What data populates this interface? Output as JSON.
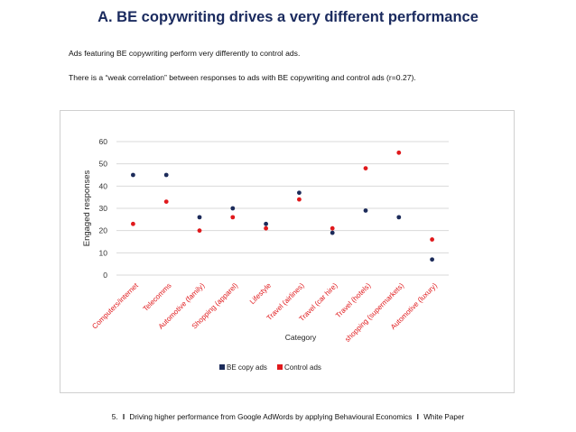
{
  "page": {
    "title": "A. BE copywriting drives a very different performance",
    "paragraph1": "Ads featuring BE copywriting perform very differently to control ads.",
    "paragraph2": "There is a “weak correlation” between responses to ads with BE copywriting and control ads (r=0.27).",
    "footer_number": "5.",
    "footer_separator": "I",
    "footer_text": "Driving higher performance from Google AdWords by applying Behavioural Economics",
    "footer_suffix": "White Paper"
  },
  "colors": {
    "title": "#1a2a5e",
    "be_copy": "#1c2b5a",
    "control": "#e0191c",
    "gridline": "#d9d9d9"
  },
  "chart_data": {
    "type": "scatter",
    "categories": [
      "Computers/internet",
      "Telecomms",
      "Automotive (family)",
      "Shopping (apparel)",
      "Lifestyle",
      "Travel (airlines)",
      "Travel (car hire)",
      "Travel (hotels)",
      "shopping (supermarkets)",
      "Automotive (luxury)"
    ],
    "series": [
      {
        "name": "BE copy ads",
        "values": [
          45,
          45,
          26,
          30,
          23,
          37,
          19,
          29,
          26,
          7
        ]
      },
      {
        "name": "Control ads",
        "values": [
          23,
          33,
          20,
          26,
          21,
          34,
          21,
          48,
          55,
          16
        ]
      }
    ],
    "xlabel": "Category",
    "ylabel": "Engaged responses",
    "ylim": [
      0,
      60
    ],
    "yticks": [
      0,
      10,
      20,
      30,
      40,
      50,
      60
    ],
    "grid": true,
    "legend_position": "bottom"
  }
}
